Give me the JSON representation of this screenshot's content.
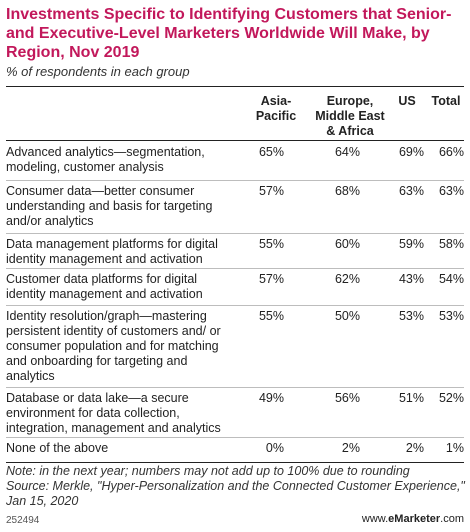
{
  "chart_data": {
    "type": "table",
    "title": "Investments Specific to Identifying Customers that Senior- and Executive-Level Marketers Worldwide Will Make, by Region, Nov 2019",
    "subtitle": "% of respondents in each group",
    "columns": [
      "Asia-Pacific",
      "Europe, Middle East & Africa",
      "US",
      "Total"
    ],
    "rows": [
      {
        "label": "Advanced analytics—segmentation, modeling, customer analysis",
        "values": [
          "65%",
          "64%",
          "69%",
          "66%"
        ]
      },
      {
        "label": "Consumer data—better consumer understanding and basis for targeting and/or analytics",
        "values": [
          "57%",
          "68%",
          "63%",
          "63%"
        ]
      },
      {
        "label": "Data management platforms for digital identity management and activation",
        "values": [
          "55%",
          "60%",
          "59%",
          "58%"
        ]
      },
      {
        "label": "Customer data platforms for digital identity management and activation",
        "values": [
          "57%",
          "62%",
          "43%",
          "54%"
        ]
      },
      {
        "label": "Identity resolution/graph—mastering persistent identity of customers and/ or consumer population and for matching and onboarding for targeting and analytics",
        "values": [
          "55%",
          "50%",
          "53%",
          "53%"
        ]
      },
      {
        "label": "Database or data lake—a secure environment for data collection, integration, management and analytics",
        "values": [
          "49%",
          "56%",
          "51%",
          "52%"
        ]
      },
      {
        "label": "None of the above",
        "values": [
          "0%",
          "2%",
          "2%",
          "1%"
        ]
      }
    ],
    "note": "Note: in the next year; numbers may not add up to 100% due to rounding",
    "source": "Source: Merkle, \"Hyper-Personalization and the Connected Customer Experience,\" Jan 15, 2020"
  },
  "footer": {
    "chart_id": "252494",
    "brand_prefix": "www.",
    "brand_name": "eMarketer",
    "brand_suffix": ".com"
  }
}
